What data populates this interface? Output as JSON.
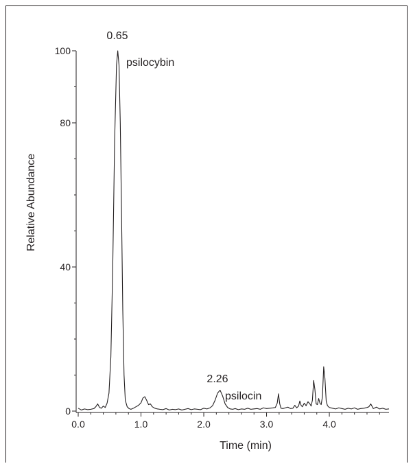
{
  "chart_data": {
    "type": "line",
    "title": "",
    "xlabel": "Time (min)",
    "ylabel": "Relative Abundance",
    "xlim": [
      0.0,
      4.95
    ],
    "ylim": [
      0,
      100
    ],
    "x_ticks": [
      "0.0",
      "1.0",
      "2.0",
      "3.0",
      "4.0"
    ],
    "y_ticks": [
      "0",
      "40",
      "80",
      "100"
    ],
    "y_tick_values": [
      0,
      40,
      80,
      100
    ],
    "x_tick_values": [
      0.0,
      1.0,
      2.0,
      3.0,
      4.0
    ],
    "grid": false,
    "legend": "none",
    "line_color": "#231f20",
    "series": [
      {
        "x": [
          0.0,
          0.05,
          0.1,
          0.15,
          0.2,
          0.25,
          0.28,
          0.31,
          0.34,
          0.37,
          0.4,
          0.43,
          0.46,
          0.49,
          0.52,
          0.55,
          0.58,
          0.61,
          0.63,
          0.65,
          0.67,
          0.69,
          0.71,
          0.73,
          0.75,
          0.78,
          0.81,
          0.84,
          0.88,
          0.92,
          0.96,
          1.0,
          1.03,
          1.06,
          1.09,
          1.12,
          1.15,
          1.18,
          1.22,
          1.26,
          1.3,
          1.35,
          1.4,
          1.45,
          1.5,
          1.55,
          1.6,
          1.65,
          1.7,
          1.75,
          1.8,
          1.85,
          1.9,
          1.95,
          2.0,
          2.05,
          2.1,
          2.14,
          2.18,
          2.22,
          2.26,
          2.3,
          2.34,
          2.38,
          2.42,
          2.46,
          2.5,
          2.55,
          2.6,
          2.65,
          2.7,
          2.75,
          2.8,
          2.85,
          2.9,
          2.95,
          3.0,
          3.05,
          3.1,
          3.14,
          3.17,
          3.19,
          3.21,
          3.23,
          3.26,
          3.3,
          3.34,
          3.38,
          3.42,
          3.45,
          3.48,
          3.51,
          3.53,
          3.55,
          3.57,
          3.6,
          3.63,
          3.66,
          3.69,
          3.71,
          3.73,
          3.75,
          3.77,
          3.79,
          3.81,
          3.83,
          3.85,
          3.87,
          3.89,
          3.91,
          3.93,
          3.95,
          3.97,
          4.0,
          4.05,
          4.1,
          4.15,
          4.2,
          4.25,
          4.3,
          4.35,
          4.4,
          4.45,
          4.5,
          4.55,
          4.6,
          4.63,
          4.66,
          4.7,
          4.75,
          4.8,
          4.85,
          4.9,
          4.95
        ],
        "y": [
          0.8,
          0.3,
          0.6,
          0.4,
          0.5,
          0.7,
          1.2,
          2.0,
          1.0,
          0.8,
          1.4,
          1.0,
          2.2,
          5.0,
          15.0,
          40.0,
          75.0,
          96.0,
          100.0,
          96.0,
          80.0,
          55.0,
          28.0,
          10.0,
          3.0,
          1.2,
          0.7,
          0.5,
          0.8,
          1.2,
          1.6,
          2.3,
          3.6,
          4.0,
          3.0,
          1.8,
          2.0,
          1.2,
          0.8,
          0.6,
          0.5,
          0.4,
          0.7,
          0.3,
          0.5,
          0.4,
          0.6,
          0.3,
          0.5,
          0.7,
          0.4,
          0.6,
          0.5,
          0.4,
          0.8,
          0.6,
          0.9,
          1.5,
          3.0,
          5.0,
          5.8,
          4.2,
          2.0,
          1.0,
          0.6,
          0.5,
          0.7,
          0.4,
          0.6,
          0.5,
          0.8,
          0.5,
          0.6,
          0.7,
          0.5,
          0.9,
          0.7,
          0.8,
          0.9,
          1.0,
          2.2,
          4.8,
          2.0,
          0.8,
          0.7,
          0.9,
          1.1,
          0.7,
          0.8,
          1.6,
          0.9,
          1.4,
          2.8,
          1.6,
          1.2,
          2.2,
          1.5,
          2.6,
          2.0,
          1.4,
          3.0,
          8.5,
          6.0,
          2.0,
          1.8,
          3.5,
          2.2,
          1.8,
          4.0,
          12.3,
          9.0,
          2.8,
          1.5,
          1.0,
          0.8,
          0.6,
          0.9,
          0.7,
          0.5,
          0.8,
          0.6,
          0.9,
          0.5,
          0.7,
          0.8,
          1.0,
          1.2,
          2.0,
          0.7,
          1.1,
          0.6,
          0.8,
          0.5,
          0.6
        ]
      }
    ],
    "annotations": [
      {
        "text": "0.65",
        "x": 0.65,
        "y": 100
      },
      {
        "text": "psilocybin",
        "x": 0.65,
        "y": 100
      },
      {
        "text": "2.26",
        "x": 2.26,
        "y": 5.8
      },
      {
        "text": "psilocin",
        "x": 2.26,
        "y": 5.8
      }
    ]
  },
  "labels": {
    "peak1_rt": "0.65",
    "peak1_name": "psilocybin",
    "peak2_rt": "2.26",
    "peak2_name": "psilocin"
  }
}
